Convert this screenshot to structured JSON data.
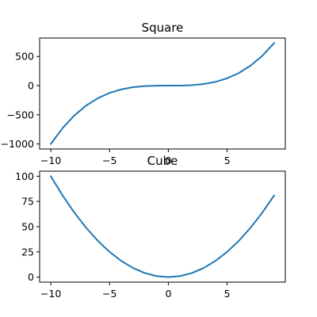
{
  "chart_data": [
    {
      "type": "line",
      "title": "Square",
      "xlabel": "",
      "ylabel": "",
      "xlim": [
        -10.95,
        9.95
      ],
      "ylim": [
        -1086.45,
        815.45
      ],
      "xticks": [
        -10,
        -5,
        0,
        5
      ],
      "xtick_labels": [
        "−10",
        "−5",
        "0",
        "5"
      ],
      "yticks": [
        -1000,
        -500,
        0,
        500
      ],
      "ytick_labels": [
        "−1000",
        "−500",
        "0",
        "500"
      ],
      "grid": false,
      "legend": "none",
      "color": "#1f77b4",
      "x": [
        -10,
        -9,
        -8,
        -7,
        -6,
        -5,
        -4,
        -3,
        -2,
        -1,
        0,
        1,
        2,
        3,
        4,
        5,
        6,
        7,
        8,
        9
      ],
      "series": [
        {
          "values": [
            -1000,
            -729,
            -512,
            -343,
            -216,
            -125,
            -64,
            -27,
            -8,
            -1,
            0,
            1,
            8,
            27,
            64,
            125,
            216,
            343,
            512,
            729
          ]
        }
      ]
    },
    {
      "type": "line",
      "title": "Cube",
      "xlabel": "",
      "ylabel": "",
      "xlim": [
        -10.95,
        9.95
      ],
      "ylim": [
        -5,
        105
      ],
      "xticks": [
        -10,
        -5,
        0,
        5
      ],
      "xtick_labels": [
        "−10",
        "−5",
        "0",
        "5"
      ],
      "yticks": [
        0,
        25,
        50,
        75,
        100
      ],
      "ytick_labels": [
        "0",
        "25",
        "50",
        "75",
        "100"
      ],
      "grid": false,
      "legend": "none",
      "color": "#1f77b4",
      "x": [
        -10,
        -9,
        -8,
        -7,
        -6,
        -5,
        -4,
        -3,
        -2,
        -1,
        0,
        1,
        2,
        3,
        4,
        5,
        6,
        7,
        8,
        9
      ],
      "series": [
        {
          "values": [
            100,
            81,
            64,
            49,
            36,
            25,
            16,
            9,
            4,
            1,
            0,
            1,
            4,
            9,
            16,
            25,
            36,
            49,
            64,
            81
          ]
        }
      ]
    }
  ]
}
